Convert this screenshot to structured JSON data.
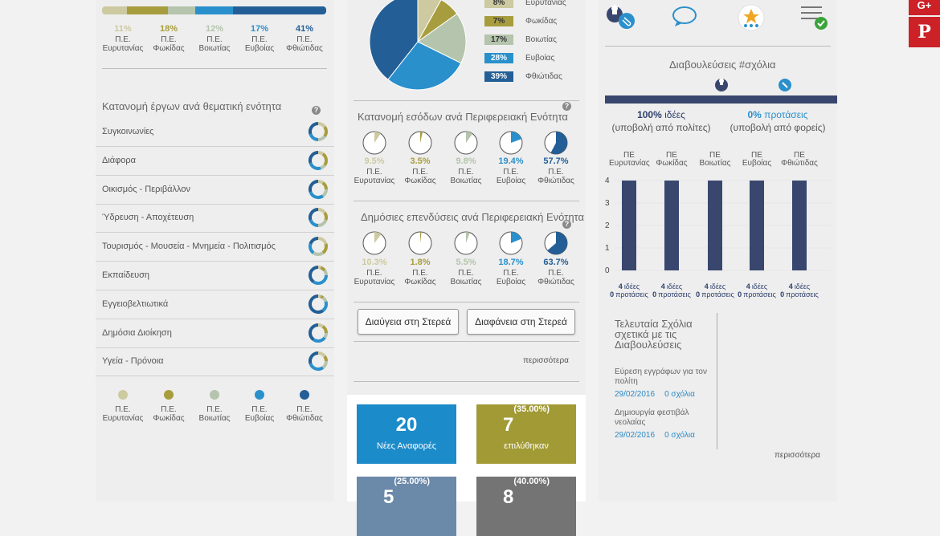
{
  "colors": {
    "c1": "#cdc9a0",
    "c2": "#a89d3e",
    "c3": "#b5c4ac",
    "c4": "#2a90cc",
    "c5": "#235f96",
    "accent": "#2a90cc",
    "navy": "#39476e"
  },
  "regions": [
    {
      "l1": "Π.Ε.",
      "l2": "Ευρυτανίας"
    },
    {
      "l1": "Π.Ε.",
      "l2": "Φωκίδας"
    },
    {
      "l1": "Π.Ε.",
      "l2": "Βοιωτίας"
    },
    {
      "l1": "Π.Ε.",
      "l2": "Ευβοίας"
    },
    {
      "l1": "Π.Ε.",
      "l2": "Φθιώτιδας"
    }
  ],
  "col1": {
    "top_bar_pcts": [
      "11%",
      "18%",
      "12%",
      "17%",
      "41%"
    ],
    "top_bar_values": [
      11,
      18,
      12,
      17,
      41
    ],
    "section_title": "Κατανομή έργων ανά θεματική ενότητα",
    "help": "?",
    "categories": [
      {
        "label": "Συγκοινωνίες",
        "values": [
          15,
          20,
          15,
          20,
          30
        ]
      },
      {
        "label": "Διάφορα",
        "values": [
          10,
          25,
          10,
          25,
          30
        ]
      },
      {
        "label": "Οικισμός - Περιβάλλον",
        "values": [
          10,
          15,
          15,
          30,
          30
        ]
      },
      {
        "label": "Ύδρευση - Αποχέτευση",
        "values": [
          15,
          15,
          20,
          20,
          30
        ]
      },
      {
        "label": "Τουρισμός - Μουσεία - Μνημεία - Πολιτισμός",
        "values": [
          20,
          20,
          20,
          20,
          20
        ]
      },
      {
        "label": "Εκπαίδευση",
        "values": [
          5,
          10,
          10,
          35,
          40
        ]
      },
      {
        "label": "Εγγειοβελτιωτικά",
        "values": [
          5,
          5,
          10,
          20,
          60
        ]
      },
      {
        "label": "Δημόσια Διοίκηση",
        "values": [
          10,
          15,
          10,
          25,
          40
        ]
      },
      {
        "label": "Υγεία - Πρόνοια",
        "values": [
          15,
          10,
          15,
          30,
          30
        ]
      }
    ]
  },
  "col2": {
    "pie_legend": [
      {
        "pct": "8%",
        "name": "Ευρυτανίας"
      },
      {
        "pct": "7%",
        "name": "Φωκίδας"
      },
      {
        "pct": "17%",
        "name": "Βοιωτίας"
      },
      {
        "pct": "28%",
        "name": "Ευβοίας"
      },
      {
        "pct": "39%",
        "name": "Φθιώτιδας"
      }
    ],
    "pie_values": [
      8,
      7,
      17,
      28,
      39
    ],
    "income_title": "Κατανομή εσόδων ανά Περιφερειακή Ενότητα",
    "income": [
      {
        "pct": "9.5%",
        "value": 9.5
      },
      {
        "pct": "3.5%",
        "value": 3.5
      },
      {
        "pct": "9.8%",
        "value": 9.8
      },
      {
        "pct": "19.4%",
        "value": 19.4
      },
      {
        "pct": "57.7%",
        "value": 57.7
      }
    ],
    "invest_title": "Δημόσιες επενδύσεις ανά Περιφερειακή Ενότητα",
    "invest": [
      {
        "pct": "10.3%",
        "value": 10.3
      },
      {
        "pct": "1.8%",
        "value": 1.8
      },
      {
        "pct": "5.5%",
        "value": 5.5
      },
      {
        "pct": "18.7%",
        "value": 18.7
      },
      {
        "pct": "63.7%",
        "value": 63.7
      }
    ],
    "btn_diavgeia": "Διαύγεια στη Στερεά",
    "btn_diafaneia": "Διαφάνεια στη Στερεά",
    "more": "περισσότερα",
    "stats": [
      {
        "num": "20",
        "sup": "",
        "label": "Νέες Αναφορές",
        "color": "#1c8bc9"
      },
      {
        "num": "7",
        "sup": "(35.00%)",
        "label": "επιλύθηκαν",
        "color": "#a19a35"
      },
      {
        "num": "5",
        "sup": "(25.00%)",
        "label": "",
        "color": "#6b89a8"
      },
      {
        "num": "8",
        "sup": "(40.00%)",
        "label": "",
        "color": "#747474"
      }
    ]
  },
  "col3": {
    "consult_title": "Διαβουλεύσεις #σχόλια",
    "ideas_pct": "100%",
    "ideas_word": "ιδέες",
    "ideas_sub": "(υποβολή από πολίτες)",
    "proposals_pct": "0%",
    "proposals_word": "προτάσεις",
    "proposals_sub": "(υποβολή από φορείς)",
    "bar_regions": [
      {
        "l1": "ΠΕ",
        "l2": "Ευρυτανίας"
      },
      {
        "l1": "ΠΕ",
        "l2": "Φωκίδας"
      },
      {
        "l1": "ΠΕ",
        "l2": "Βοιωτίας"
      },
      {
        "l1": "ΠΕ",
        "l2": "Ευβοίας"
      },
      {
        "l1": "ΠΕ",
        "l2": "Φθιώτιδας"
      }
    ],
    "y_ticks": [
      "4",
      "3",
      "2",
      "1",
      "0"
    ],
    "bar_values": [
      4,
      4,
      4,
      4,
      4
    ],
    "bar_ideas": [
      "4",
      "4",
      "4",
      "4",
      "4"
    ],
    "bar_proposals": [
      "0",
      "0",
      "0",
      "0",
      "0"
    ],
    "ideas_word_small": "ιδέες",
    "proposals_word_small": "προτάσεις",
    "comments_title": "Τελευταία Σχόλια σχετικά με τις Διαβουλεύσεις",
    "comments": [
      {
        "title": "Εύρεση εγγράφων για τον πολίτη",
        "date": "29/02/2016",
        "count": "0 σχόλια"
      },
      {
        "title": "Δημιουργία φεστιβάλ νεολαίας",
        "date": "29/02/2016",
        "count": "0 σχόλια"
      }
    ],
    "more": "περισσότερα"
  },
  "social": {
    "gplus": "G+",
    "pinterest": "P"
  }
}
